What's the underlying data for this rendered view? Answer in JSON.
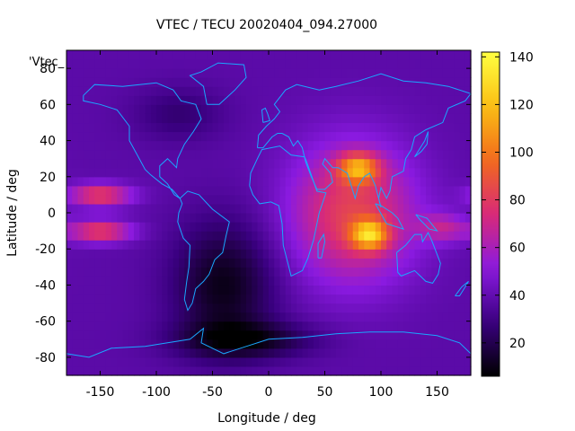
{
  "chart_data": {
    "type": "heatmap",
    "title": "VTEC / TECU 20020404_094.27000",
    "xlabel": "Longitude / deg",
    "ylabel": "Latitude / deg",
    "legend_label": "'Vtec_",
    "xlim": [
      -180,
      180
    ],
    "ylim": [
      -90,
      90
    ],
    "x_ticks": [
      "-150",
      "-100",
      "-50",
      "0",
      "50",
      "100",
      "150"
    ],
    "y_ticks": [
      "-80",
      "-60",
      "-40",
      "-20",
      "0",
      "20",
      "40",
      "60",
      "80"
    ],
    "colorbar": {
      "range": [
        6,
        142
      ],
      "ticks": [
        "20",
        "40",
        "60",
        "80",
        "100",
        "120",
        "140"
      ],
      "palette": [
        "#000000",
        "#3a0080",
        "#8a1ae0",
        "#d82a78",
        "#f26a1c",
        "#fabf14",
        "#ffff40"
      ]
    },
    "grid": false,
    "features": [
      {
        "name": "dayside equatorial crest north",
        "lon": 80,
        "lat": 25,
        "vtec": 135
      },
      {
        "name": "dayside equatorial crest south",
        "lon": 90,
        "lat": -12,
        "vtec": 140
      },
      {
        "name": "dayside broad enhancement",
        "lon": 70,
        "lat": 5,
        "vtec": 85
      },
      {
        "name": "evening anomaly band north",
        "lon": -150,
        "lat": 10,
        "vtec": 85
      },
      {
        "name": "evening anomaly band south",
        "lon": -150,
        "lat": -10,
        "vtec": 85
      },
      {
        "name": "night minimum south america",
        "lon": -45,
        "lat": -45,
        "vtec": 12
      },
      {
        "name": "antarctic minimum",
        "lon": -30,
        "lat": -70,
        "vtec": 8
      },
      {
        "name": "polar north background",
        "lon": -60,
        "lat": 75,
        "vtec": 25
      }
    ],
    "background_vtec": 38
  }
}
